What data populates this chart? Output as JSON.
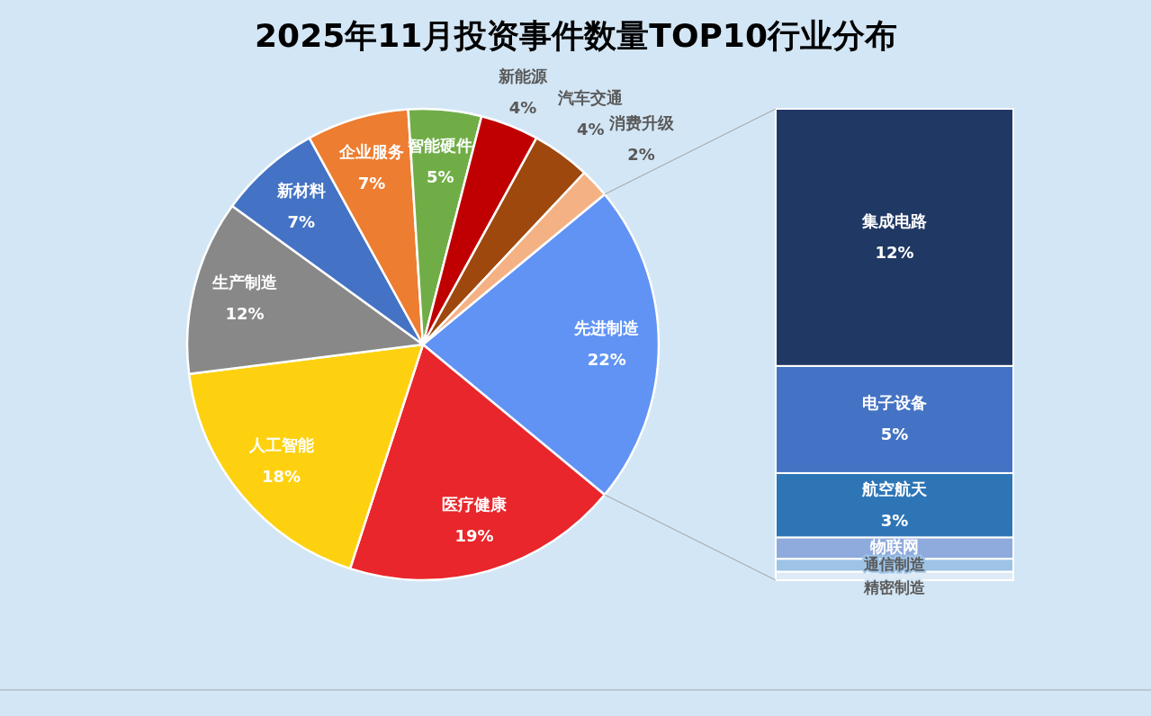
{
  "chart_data": [
    {
      "type": "pie",
      "title": "2025年11月投资事件数量TOP10行业分布",
      "categories": [
        "先进制造",
        "医疗健康",
        "人工智能",
        "生产制造",
        "新材料",
        "企业服务",
        "智能硬件",
        "新能源",
        "汽车交通",
        "消费升级"
      ],
      "values": [
        22,
        19,
        18,
        12,
        7,
        7,
        5,
        4,
        4,
        2
      ],
      "value_labels": [
        "22%",
        "19%",
        "18%",
        "12%",
        "7%",
        "7%",
        "5%",
        "4%",
        "4%",
        "2%"
      ],
      "colors": [
        "#6193f5",
        "#e8262b",
        "#fdd10f",
        "#888888",
        "#4472c4",
        "#ed7d31",
        "#70ad47",
        "#c00000",
        "#9e480e",
        "#f4b183"
      ]
    },
    {
      "type": "bar",
      "stacked": true,
      "categories": [
        null
      ],
      "series": [
        {
          "name": "精密制造",
          "color": "#deebf7",
          "values": [
            0.4
          ],
          "value_labels": [
            null
          ]
        },
        {
          "name": "通信制造",
          "color": "#9dc3e6",
          "values": [
            0.6
          ],
          "value_labels": [
            null
          ]
        },
        {
          "name": "物联网",
          "color": "#8faadc",
          "values": [
            1.0
          ],
          "value_labels": [
            null
          ]
        },
        {
          "name": "航空航天",
          "color": "#2e75b6",
          "values": [
            3
          ],
          "value_labels": [
            "3%"
          ]
        },
        {
          "name": "电子设备",
          "color": "#4472c4",
          "values": [
            5
          ],
          "value_labels": [
            "5%"
          ]
        },
        {
          "name": "集成电路",
          "color": "#203864",
          "values": [
            12
          ],
          "value_labels": [
            "12%"
          ]
        }
      ]
    }
  ]
}
